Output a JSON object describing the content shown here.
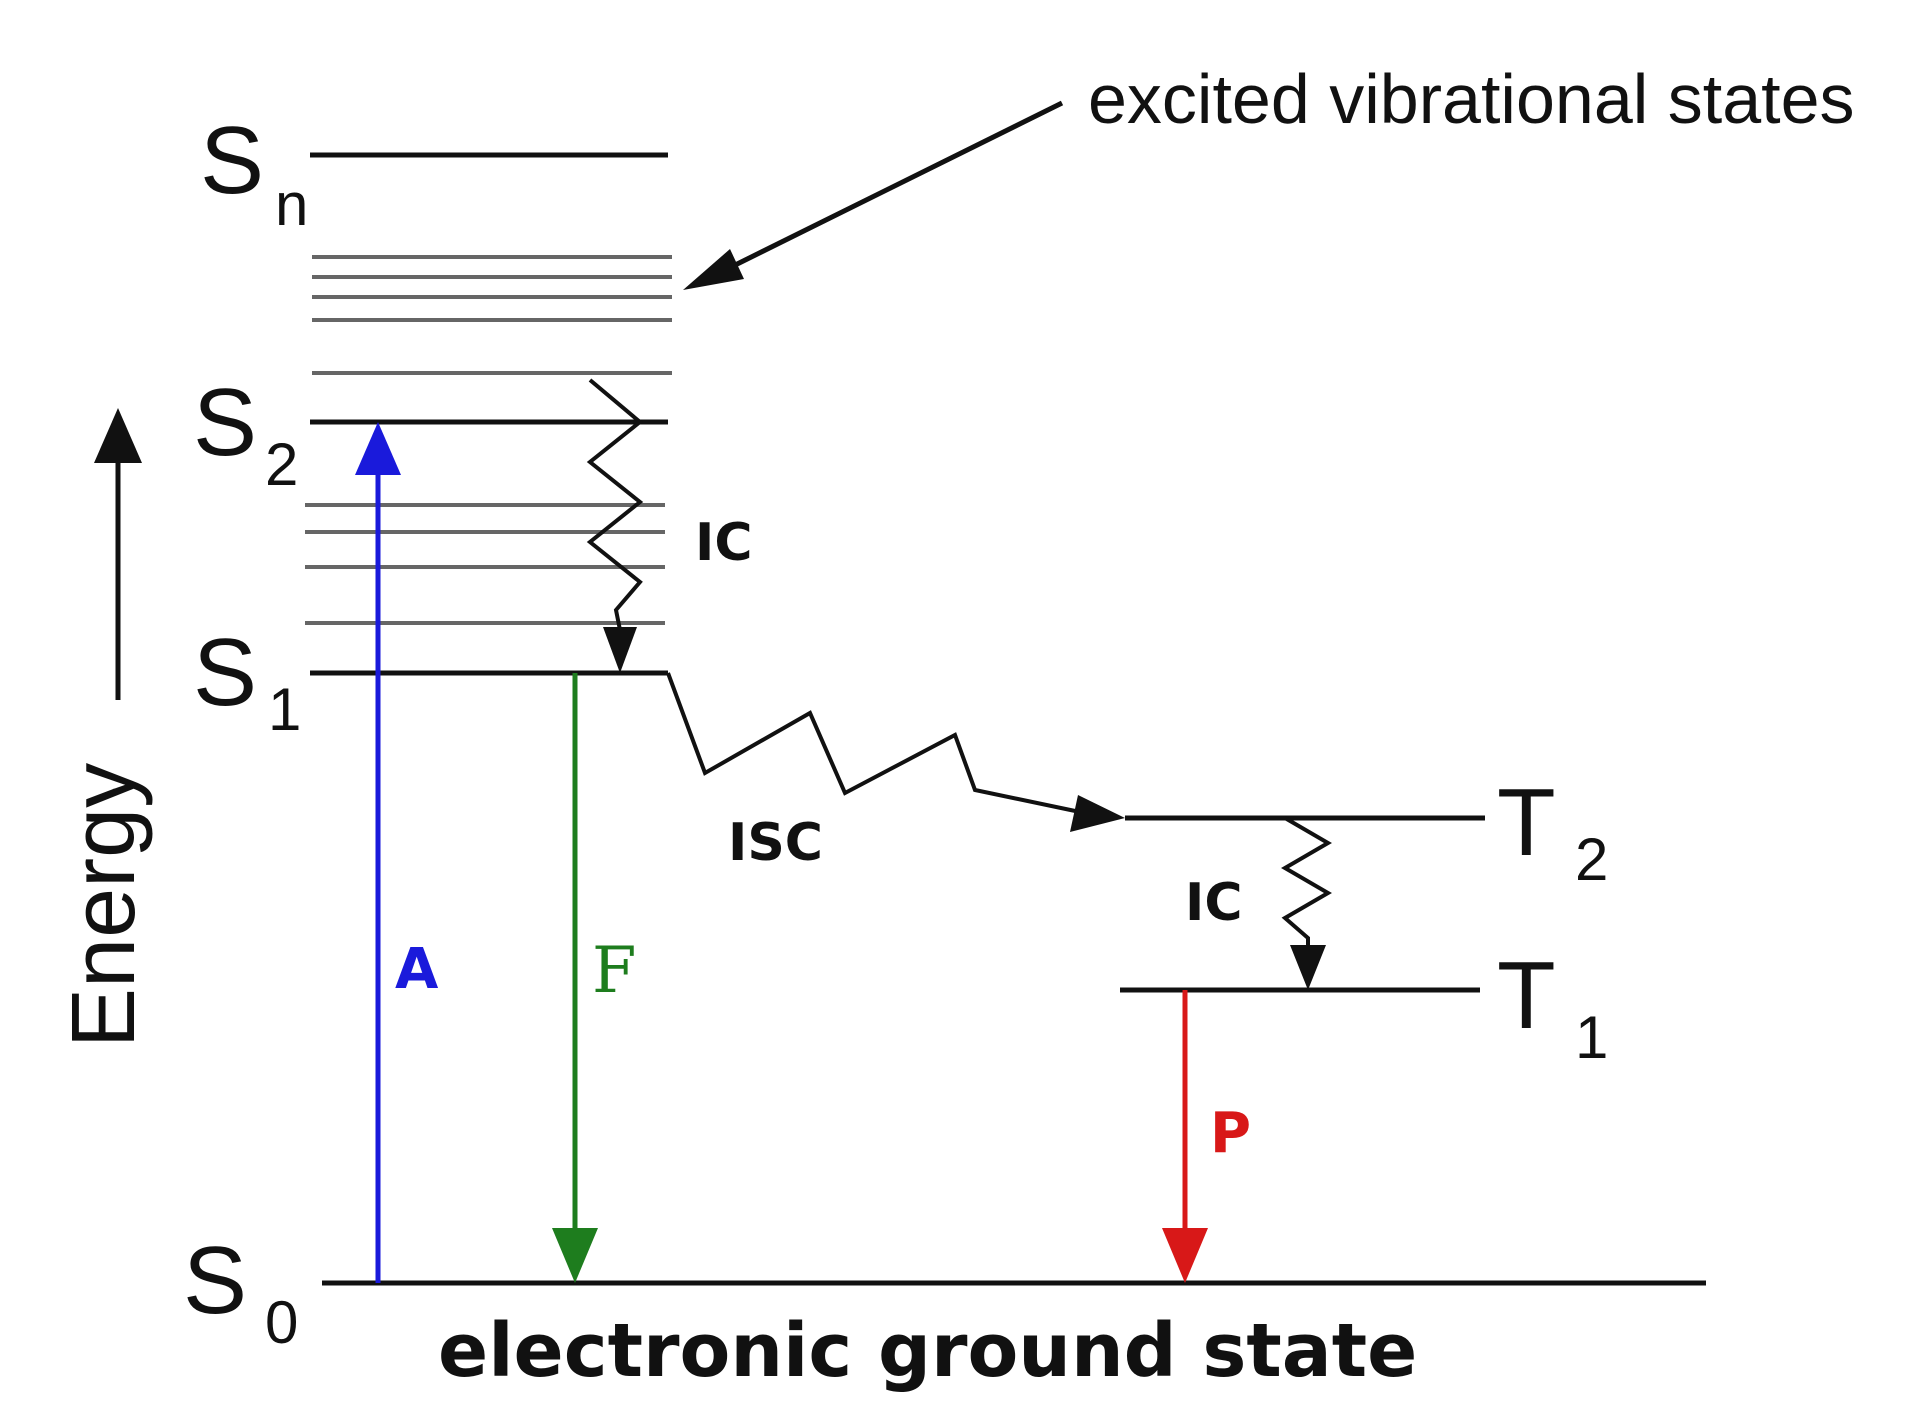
{
  "diagram": {
    "annotation": "excited vibrational states",
    "axis_label": "Energy",
    "ground_caption": "electronic ground state",
    "states": {
      "sn": {
        "letter": "S",
        "sub": "n"
      },
      "s2": {
        "letter": "S",
        "sub": "2"
      },
      "s1": {
        "letter": "S",
        "sub": "1"
      },
      "s0": {
        "letter": "S",
        "sub": "0"
      },
      "t2": {
        "letter": "T",
        "sub": "2"
      },
      "t1": {
        "letter": "T",
        "sub": "1"
      }
    },
    "transitions": {
      "absorption": {
        "label": "A",
        "color": "#1a1adb"
      },
      "fluorescence": {
        "label": "F",
        "color": "#1e7d1e"
      },
      "phosphorescence": {
        "label": "P",
        "color": "#d81818"
      },
      "ic_singlet": {
        "label": "IC"
      },
      "isc": {
        "label": "ISC"
      },
      "ic_triplet": {
        "label": "IC"
      }
    },
    "colors": {
      "ink": "#111111",
      "vibrational_level": "#666666"
    }
  }
}
